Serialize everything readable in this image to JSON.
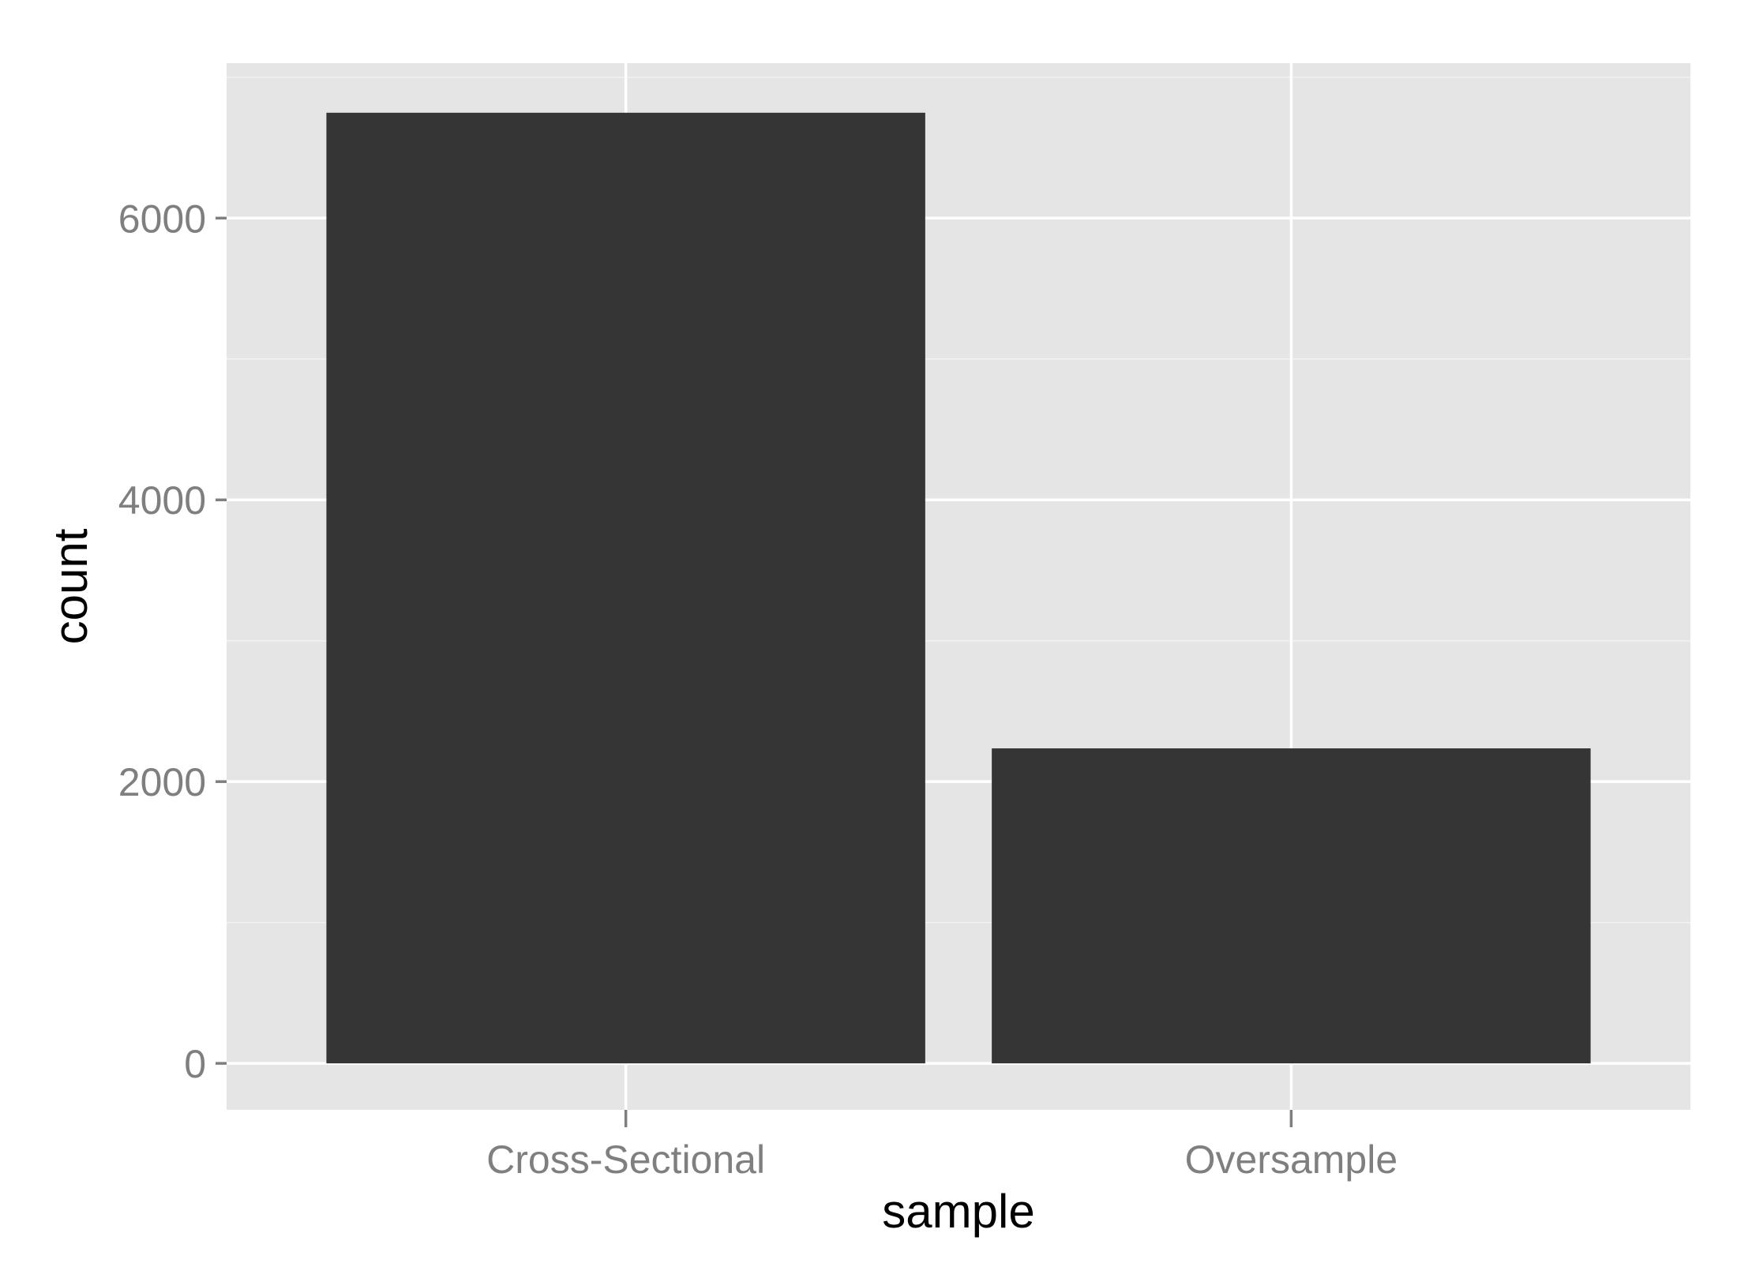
{
  "chart_data": {
    "type": "bar",
    "title": "",
    "xlabel": "sample",
    "ylabel": "count",
    "categories": [
      "Cross-Sectional",
      "Oversample"
    ],
    "values": [
      6748,
      2236
    ],
    "ylim": [
      -330,
      7100
    ],
    "yticks": [
      0,
      2000,
      4000,
      6000
    ],
    "yticks_minor": [
      1000,
      3000,
      5000,
      7000
    ],
    "ytick_labels": [
      "0",
      "2000",
      "4000",
      "6000"
    ],
    "grid": true,
    "legend": "none",
    "colors": {
      "bar": "#353535",
      "panel": "#e5e5e5",
      "grid": "#ffffff",
      "tick_text": "#7f7f7f"
    }
  }
}
